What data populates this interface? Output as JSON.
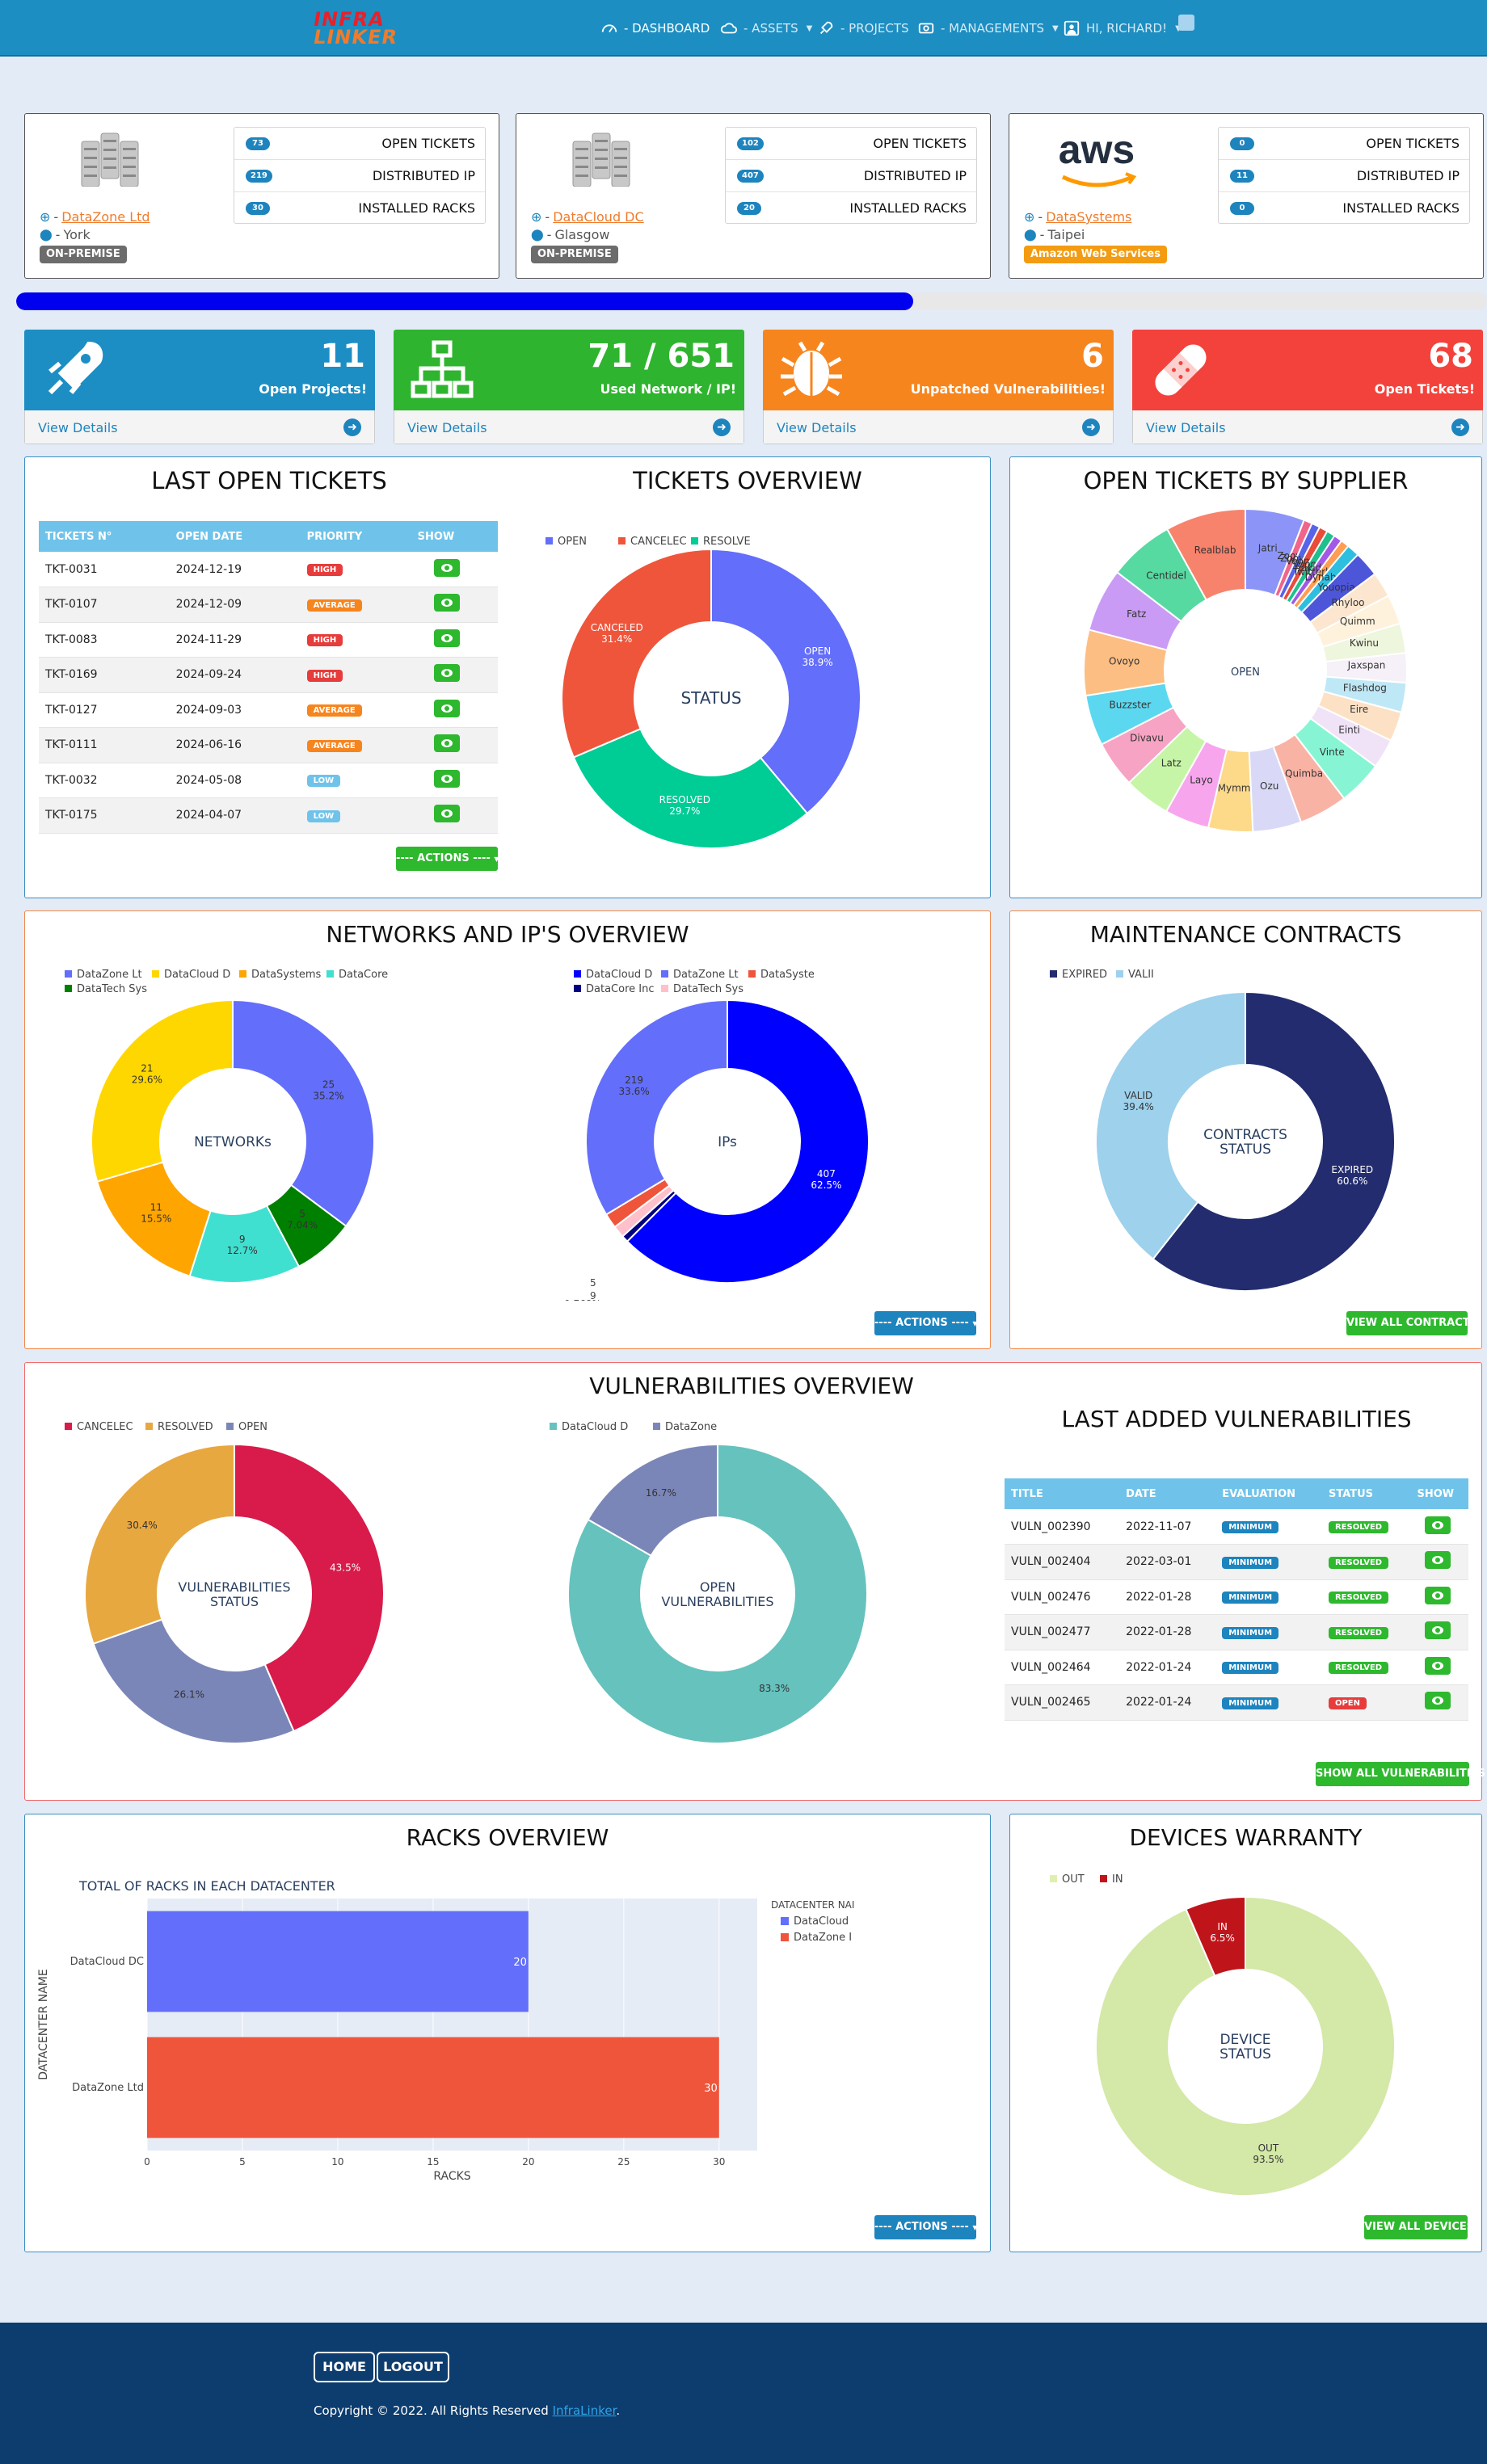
{
  "topbar": {
    "logo_line1": "INFRA",
    "logo_line2": "LINKER",
    "nav": [
      {
        "label": "- DASHBOARD"
      },
      {
        "label": "- ASSETS"
      },
      {
        "label": "- PROJECTS"
      },
      {
        "label": "- MANAGEMENTS"
      },
      {
        "label": "HI, RICHARD!"
      }
    ],
    "icons": [
      "dashboard-icon",
      "cloud-icon",
      "rocket-icon",
      "management-icon",
      "user-icon"
    ]
  },
  "datacenters": [
    {
      "name": "DataZone Ltd",
      "city": "York",
      "type": "ON-PREMISE",
      "type_color": "#6c6c6c",
      "stats": [
        {
          "value": "73",
          "label": "OPEN TICKETS"
        },
        {
          "value": "219",
          "label": "DISTRIBUTED IP"
        },
        {
          "value": "30",
          "label": "INSTALLED RACKS"
        }
      ]
    },
    {
      "name": "DataCloud DC",
      "city": "Glasgow",
      "type": "ON-PREMISE",
      "type_color": "#6c6c6c",
      "stats": [
        {
          "value": "102",
          "label": "OPEN TICKETS"
        },
        {
          "value": "407",
          "label": "DISTRIBUTED IP"
        },
        {
          "value": "20",
          "label": "INSTALLED RACKS"
        }
      ]
    },
    {
      "name": "DataSystems",
      "city": "Taipei",
      "type": "Amazon Web Services",
      "type_color": "#f39c12",
      "logo_text": "aws",
      "stats": [
        {
          "value": "0",
          "label": "OPEN TICKETS"
        },
        {
          "value": "11",
          "label": "DISTRIBUTED IP"
        },
        {
          "value": "0",
          "label": "INSTALLED RACKS"
        }
      ]
    }
  ],
  "progress": {
    "percent": 61
  },
  "info_boxes": [
    {
      "value": "11",
      "label": "Open Projects!",
      "link": "View Details",
      "color": "#1d8ec4",
      "icon": "rocket-icon"
    },
    {
      "value": "71 / 651",
      "label": "Used Network / IP!",
      "link": "View Details",
      "color": "#2fb42f",
      "icon": "network-icon"
    },
    {
      "value": "6",
      "label": "Unpatched Vulnerabilities!",
      "link": "View Details",
      "color": "#f7851e",
      "icon": "bug-icon"
    },
    {
      "value": "68",
      "label": "Open Tickets!",
      "link": "View Details",
      "color": "#f3423b",
      "icon": "bandage-icon"
    }
  ],
  "last_open_tickets": {
    "title": "LAST OPEN TICKETS",
    "headers": [
      "TICKETS N°",
      "OPEN DATE",
      "PRIORITY",
      "SHOW"
    ],
    "rows": [
      {
        "id": "TKT-0031",
        "date": "2024-12-19",
        "priority": "HIGH"
      },
      {
        "id": "TKT-0107",
        "date": "2024-12-09",
        "priority": "AVERAGE"
      },
      {
        "id": "TKT-0083",
        "date": "2024-11-29",
        "priority": "HIGH"
      },
      {
        "id": "TKT-0169",
        "date": "2024-09-24",
        "priority": "HIGH"
      },
      {
        "id": "TKT-0127",
        "date": "2024-09-03",
        "priority": "AVERAGE"
      },
      {
        "id": "TKT-0111",
        "date": "2024-06-16",
        "priority": "AVERAGE"
      },
      {
        "id": "TKT-0032",
        "date": "2024-05-08",
        "priority": "LOW"
      },
      {
        "id": "TKT-0175",
        "date": "2024-04-07",
        "priority": "LOW"
      }
    ],
    "priority_colors": {
      "HIGH": "#e63c3c",
      "AVERAGE": "#f7851e",
      "LOW": "#6fc3ea"
    },
    "actions_label": "---- ACTIONS ----"
  },
  "chart_data": [
    {
      "id": "tickets",
      "type": "pie",
      "title": "TICKETS OVERVIEW",
      "center_label": "STATUS",
      "legend": [
        "OPEN",
        "CANCELEC",
        "RESOLVE"
      ],
      "slices": [
        {
          "label": "OPEN",
          "value": 38.9,
          "color": "#636efa",
          "text": "OPEN\n38.9%"
        },
        {
          "label": "RESOLVED",
          "value": 29.7,
          "color": "#00cc96",
          "text": "RESOLVED\n29.7%"
        },
        {
          "label": "CANCELED",
          "value": 31.4,
          "color": "#ef553b",
          "text": "CANCELED\n31.4%"
        }
      ]
    },
    {
      "id": "supplier",
      "type": "pie",
      "title": "OPEN TICKETS BY SUPPLIER",
      "center_label": "OPEN",
      "slices": [
        {
          "label": "Jatri",
          "value": 5.6,
          "color": "#8c95f7"
        },
        {
          "label": "Zoovu",
          "value": 0.8,
          "color": "#f0658a"
        },
        {
          "label": "Zooveo",
          "value": 0.8,
          "color": "#5963e8"
        },
        {
          "label": "Voomm",
          "value": 0.8,
          "color": "#e94c3b"
        },
        {
          "label": "Voonte",
          "value": 0.8,
          "color": "#1fc08e"
        },
        {
          "label": "Yakidoo",
          "value": 0.8,
          "color": "#a259e6"
        },
        {
          "label": "Twitterbeat",
          "value": 0.8,
          "color": "#ff9d52"
        },
        {
          "label": "Dynabox",
          "value": 1.2,
          "color": "#2ebfe0"
        },
        {
          "label": "Youopia",
          "value": 2.4,
          "color": "#4d55d9"
        },
        {
          "label": "Rhyloo",
          "value": 2.4,
          "color": "#fde6cf"
        },
        {
          "label": "Quimm",
          "value": 2.8,
          "color": "#fff2dc"
        },
        {
          "label": "Kwinu",
          "value": 2.8,
          "color": "#eef6dd"
        },
        {
          "label": "Jaxspan",
          "value": 2.8,
          "color": "#f6f0f8"
        },
        {
          "label": "Flashdog",
          "value": 2.8,
          "color": "#bfe8f6"
        },
        {
          "label": "Eire",
          "value": 2.8,
          "color": "#fde1c5"
        },
        {
          "label": "Einti",
          "value": 2.8,
          "color": "#f0e3f7"
        },
        {
          "label": "Vinte",
          "value": 4.2,
          "color": "#87f5d4"
        },
        {
          "label": "Quimba",
          "value": 4.6,
          "color": "#f9b3a5"
        },
        {
          "label": "Ozu",
          "value": 4.6,
          "color": "#d9d9f7"
        },
        {
          "label": "Mymm",
          "value": 4.2,
          "color": "#fdd98a"
        },
        {
          "label": "Layo",
          "value": 4.2,
          "color": "#f7a6ee"
        },
        {
          "label": "Latz",
          "value": 4.4,
          "color": "#c6f5a7"
        },
        {
          "label": "Divavu",
          "value": 4.4,
          "color": "#f7a3c3"
        },
        {
          "label": "Buzzster",
          "value": 4.8,
          "color": "#5bd8f0"
        },
        {
          "label": "Ovoyo",
          "value": 6.2,
          "color": "#fdbe83"
        },
        {
          "label": "Fatz",
          "value": 6.0,
          "color": "#c99bf5"
        },
        {
          "label": "Centidel",
          "value": 6.2,
          "color": "#57d9a2"
        },
        {
          "label": "Realblab",
          "value": 7.6,
          "color": "#f7836d"
        }
      ]
    },
    {
      "id": "networks",
      "type": "pie",
      "title": "NETWORKS AND IP'S OVERVIEW",
      "center_label": "NETWORKs",
      "legend": [
        "DataZone Lt",
        "DataCloud D",
        "DataSystems",
        "DataCore",
        "DataTech Sys"
      ],
      "slices": [
        {
          "label": "DataZone Ltd",
          "value": 25,
          "pct": "35.2%",
          "color": "#636efa"
        },
        {
          "label": "DataTech Sys",
          "value": 5,
          "pct": "7.04%",
          "color": "#008000"
        },
        {
          "label": "DataCore",
          "value": 9,
          "pct": "12.7%",
          "color": "#40e0d0"
        },
        {
          "label": "DataSystems",
          "value": 11,
          "pct": "15.5%",
          "color": "#ffa500"
        },
        {
          "label": "DataCloud DC",
          "value": 21,
          "pct": "29.6%",
          "color": "#ffd700"
        }
      ]
    },
    {
      "id": "ips",
      "type": "pie",
      "center_label": "IPs",
      "legend": [
        "DataCloud D",
        "DataZone Lt",
        "DataSyste",
        "DataCore Inc",
        "DataTech Sys"
      ],
      "slices": [
        {
          "label": "DataCloud DC",
          "value": 407,
          "pct": "62.5%",
          "color": "#0000ff"
        },
        {
          "label": "DataTech Sys",
          "value": 5,
          "pct": "0.768%",
          "color": "#000080"
        },
        {
          "label": "DataCore Inc",
          "value": 9,
          "pct": "1.38%",
          "color": "#ffc0cb"
        },
        {
          "label": "DataSystems",
          "value": 11,
          "pct": "1.69%",
          "color": "#ef553b"
        },
        {
          "label": "DataZone Ltd",
          "value": 219,
          "pct": "33.6%",
          "color": "#636efa"
        }
      ]
    },
    {
      "id": "contracts",
      "type": "pie",
      "title": "MAINTENANCE CONTRACTS",
      "center_label": "CONTRACTS\nSTATUS",
      "legend": [
        "EXPIRED",
        "VALII"
      ],
      "slices": [
        {
          "label": "EXPIRED",
          "value": 60.6,
          "color": "#232c6e"
        },
        {
          "label": "VALID",
          "value": 39.4,
          "color": "#9dd1ec"
        }
      ]
    },
    {
      "id": "vuln_status",
      "type": "pie",
      "title": "VULNERABILITIES OVERVIEW",
      "center_label": "VULNERABILITIES\nSTATUS",
      "legend": [
        "CANCELEC",
        "RESOLVED",
        "OPEN"
      ],
      "slices": [
        {
          "label": "OPEN",
          "value": 43.5,
          "color": "#d81b4a"
        },
        {
          "label": "RESOLVED",
          "value": 26.1,
          "color": "#7b86b8"
        },
        {
          "label": "CANCELED",
          "value": 30.4,
          "color": "#e8a840"
        }
      ]
    },
    {
      "id": "vuln_open",
      "type": "pie",
      "center_label": "OPEN\nVULNERABILITIES",
      "legend": [
        "DataCloud D",
        "DataZone"
      ],
      "slices": [
        {
          "label": "DataCloud DC",
          "value": 83.3,
          "color": "#66c2bd"
        },
        {
          "label": "DataZone Ltd",
          "value": 16.7,
          "color": "#7b86b8"
        }
      ]
    },
    {
      "id": "racks",
      "type": "bar",
      "title": "RACKS OVERVIEW",
      "subtitle": "TOTAL OF RACKS IN EACH DATACENTER",
      "xlabel": "RACKS",
      "ylabel": "DATACENTER NAME",
      "xlim": [
        0,
        32
      ],
      "xticks": [
        0,
        5,
        10,
        15,
        20,
        25,
        30
      ],
      "legend_title": "DATACENTER NAI",
      "categories": [
        "DataCloud DC",
        "DataZone Ltd"
      ],
      "series": [
        {
          "name": "DataCloud",
          "values": [
            20,
            null
          ],
          "color": "#636efa"
        },
        {
          "name": "DataZone I",
          "values": [
            null,
            30
          ],
          "color": "#ef553b"
        }
      ]
    },
    {
      "id": "warranty",
      "type": "pie",
      "title": "DEVICES WARRANTY",
      "center_label": "DEVICE\nSTATUS",
      "legend": [
        "OUT",
        "IN"
      ],
      "slices": [
        {
          "label": "OUT",
          "value": 93.5,
          "color": "#d4e8a8"
        },
        {
          "label": "IN",
          "value": 6.5,
          "color": "#c0141b"
        }
      ]
    }
  ],
  "buttons": {
    "net_actions": "---- ACTIONS ----",
    "view_contracts": "VIEW ALL CONTRACTS",
    "show_vulns": "SHOW ALL VULNERABILITIES",
    "rack_actions": "---- ACTIONS ----",
    "view_devices": "VIEW ALL DEVICES"
  },
  "last_vulns": {
    "title": "LAST ADDED VULNERABILITIES",
    "headers": [
      "TITLE",
      "DATE",
      "EVALUATION",
      "STATUS",
      "SHOW"
    ],
    "rows": [
      {
        "title": "VULN_002390",
        "date": "2022-11-07",
        "eval": "MINIMUM",
        "status": "RESOLVED"
      },
      {
        "title": "VULN_002404",
        "date": "2022-03-01",
        "eval": "MINIMUM",
        "status": "RESOLVED"
      },
      {
        "title": "VULN_002476",
        "date": "2022-01-28",
        "eval": "MINIMUM",
        "status": "RESOLVED"
      },
      {
        "title": "VULN_002477",
        "date": "2022-01-28",
        "eval": "MINIMUM",
        "status": "RESOLVED"
      },
      {
        "title": "VULN_002464",
        "date": "2022-01-24",
        "eval": "MINIMUM",
        "status": "RESOLVED"
      },
      {
        "title": "VULN_002465",
        "date": "2022-01-24",
        "eval": "MINIMUM",
        "status": "OPEN"
      }
    ]
  },
  "footer": {
    "home": "HOME",
    "logout": "LOGOUT",
    "copyright": "Copyright © 2022. All Rights Reserved",
    "brand": "InfraLinker",
    "suffix": "."
  }
}
